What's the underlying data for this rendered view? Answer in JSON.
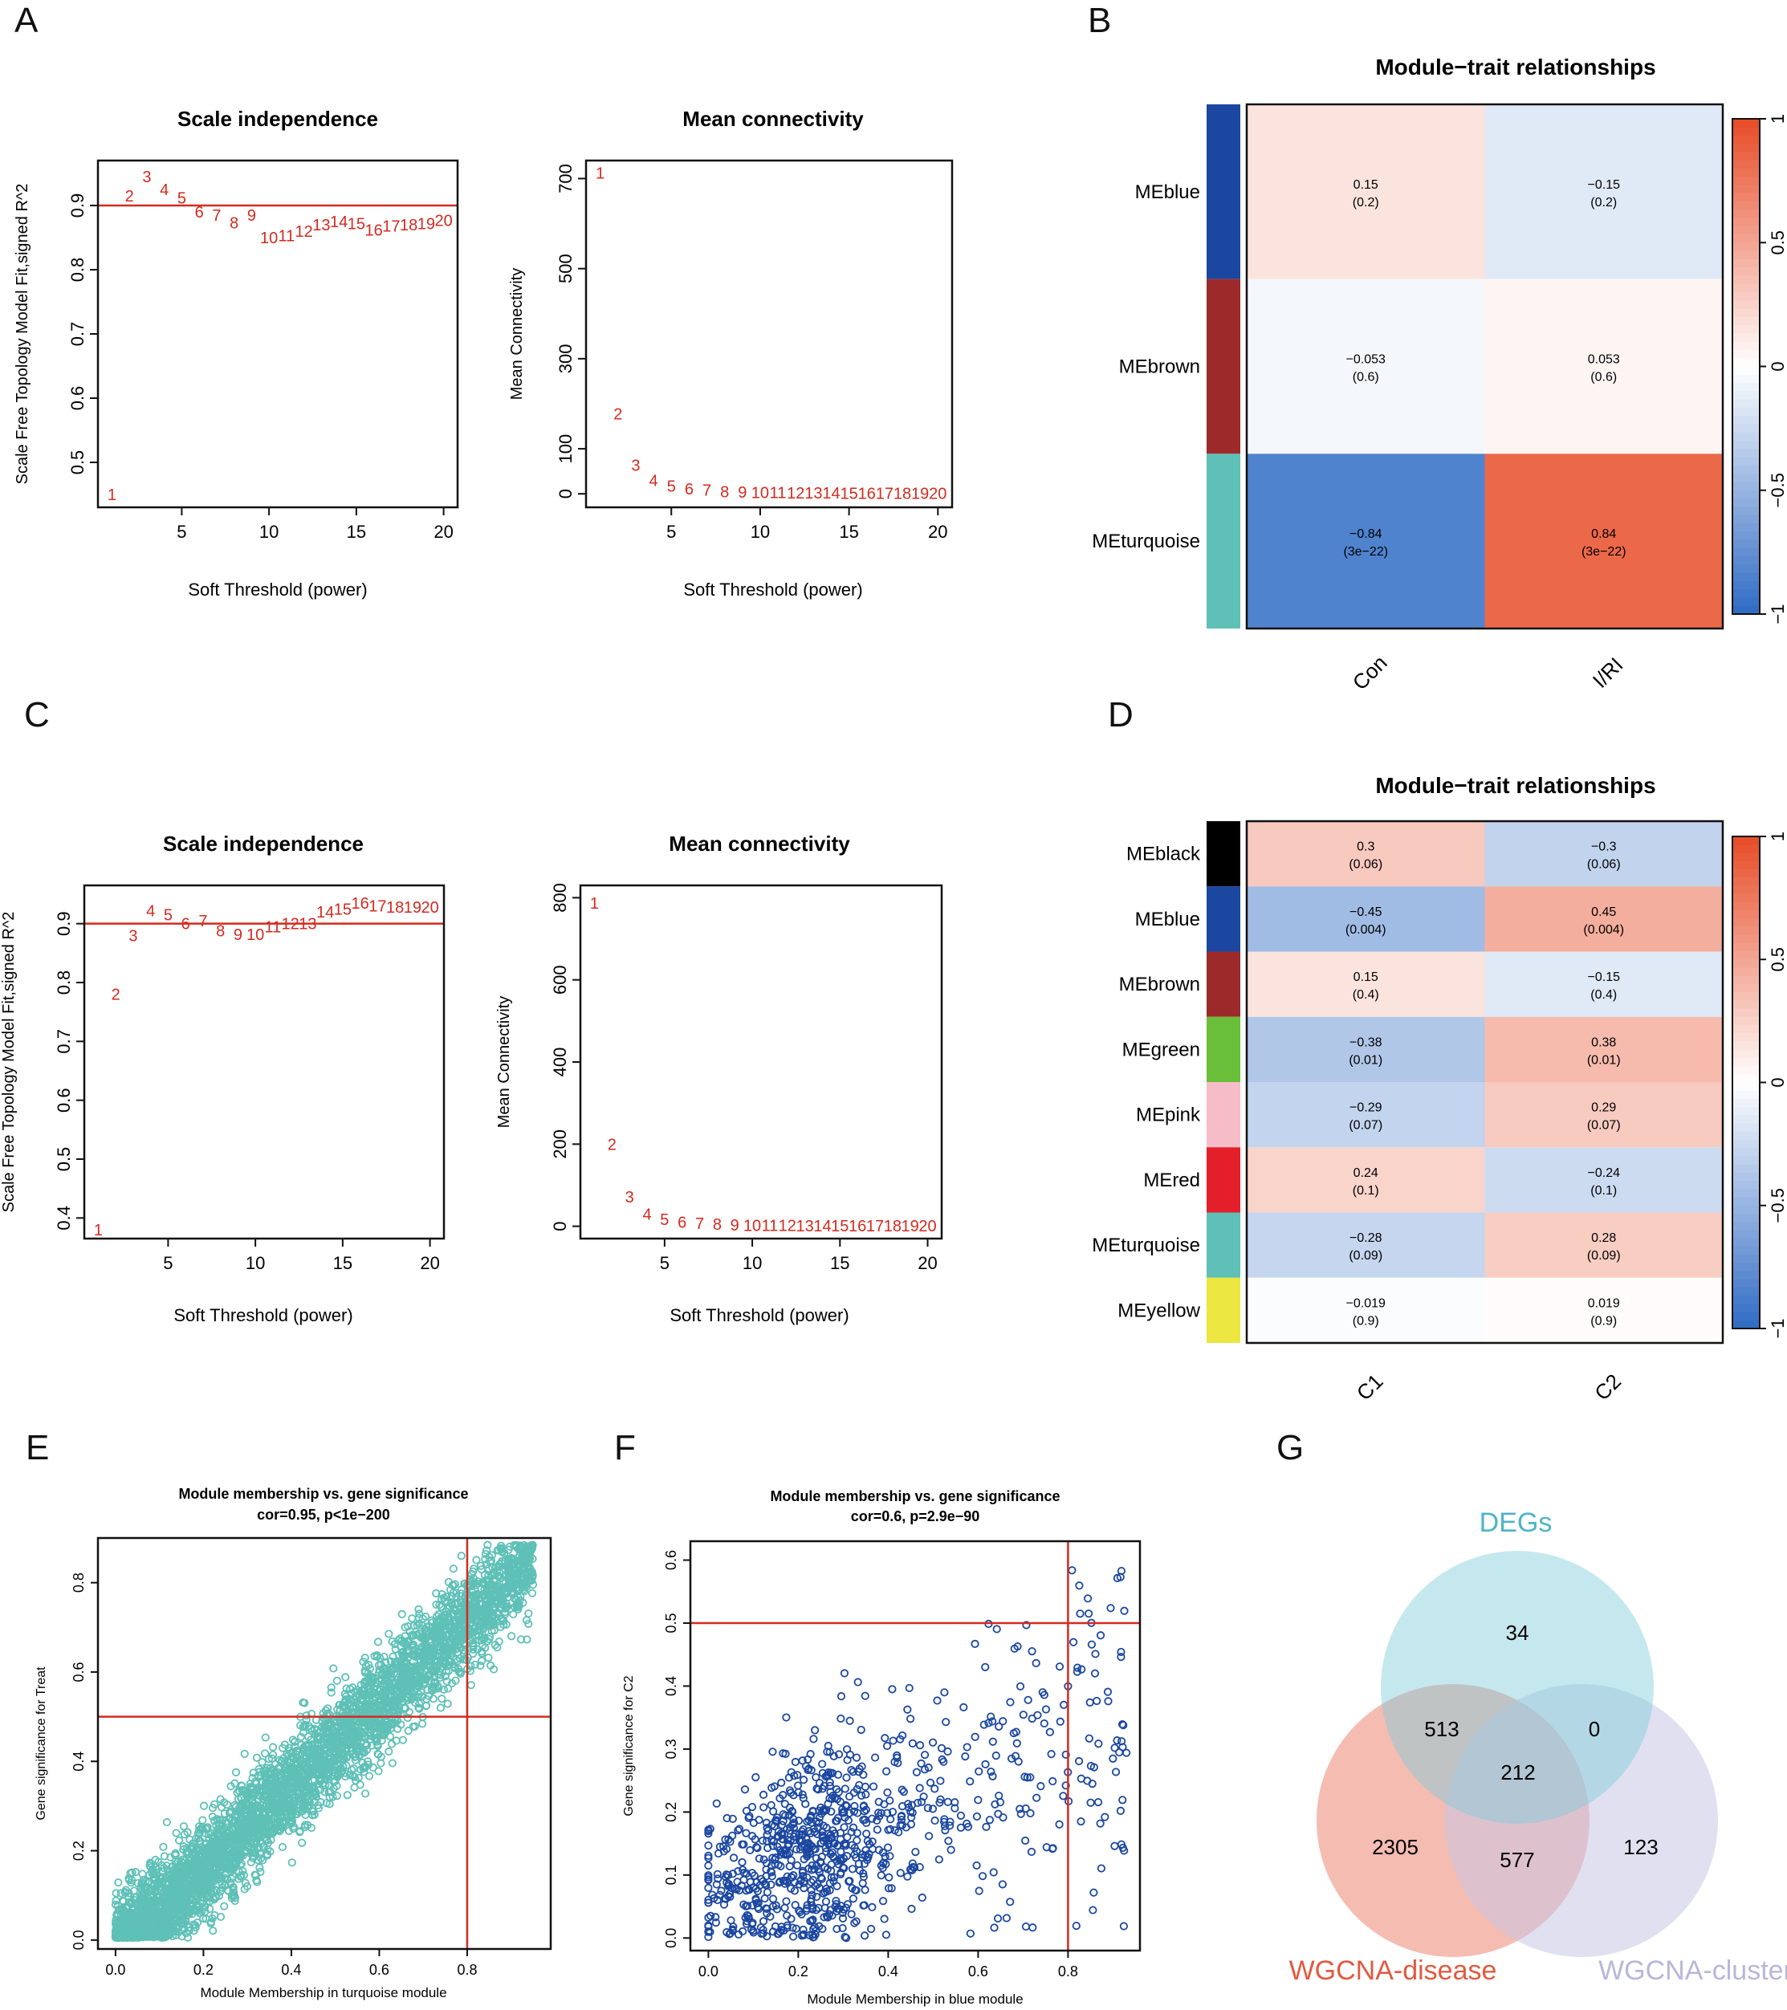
{
  "figure": {
    "panel_letters": [
      "A",
      "B",
      "C",
      "D",
      "E",
      "F",
      "G"
    ]
  },
  "chart_data": [
    {
      "panel": "A-left",
      "type": "scatter",
      "title": "Scale independence",
      "xlabel": "Soft Threshold (power)",
      "ylabel": "Scale Free Topology Model Fit,signed R^2",
      "xlim": [
        0.2,
        20.8
      ],
      "ylim": [
        0.43,
        0.97
      ],
      "xticks": [
        5,
        10,
        15,
        20
      ],
      "yticks": [
        0.5,
        0.6,
        0.7,
        0.8,
        0.9
      ],
      "threshold_line": 0.9,
      "point_labels": [
        "1",
        "2",
        "3",
        "4",
        "5",
        "6",
        "7",
        "8",
        "9",
        "10",
        "11",
        "12",
        "13",
        "14",
        "15",
        "16",
        "17",
        "18",
        "19",
        "20"
      ],
      "x": [
        1,
        2,
        3,
        4,
        5,
        6,
        7,
        8,
        9,
        10,
        11,
        12,
        13,
        14,
        15,
        16,
        17,
        18,
        19,
        20
      ],
      "values": [
        0.45,
        0.915,
        0.945,
        0.925,
        0.912,
        0.89,
        0.885,
        0.873,
        0.885,
        0.85,
        0.853,
        0.86,
        0.87,
        0.875,
        0.872,
        0.862,
        0.868,
        0.87,
        0.872,
        0.877
      ]
    },
    {
      "panel": "A-right",
      "type": "scatter",
      "title": "Mean connectivity",
      "xlabel": "Soft Threshold (power)",
      "ylabel": "Mean Connectivity",
      "xlim": [
        0.2,
        20.8
      ],
      "ylim": [
        -30,
        740
      ],
      "xticks": [
        5,
        10,
        15,
        20
      ],
      "yticks": [
        0,
        100,
        300,
        500,
        700
      ],
      "point_labels": [
        "1",
        "2",
        "3",
        "4",
        "5",
        "6",
        "7",
        "8",
        "9",
        "10",
        "11",
        "12",
        "13",
        "14",
        "15",
        "16",
        "17",
        "18",
        "19",
        "20"
      ],
      "x": [
        1,
        2,
        3,
        4,
        5,
        6,
        7,
        8,
        9,
        10,
        11,
        12,
        13,
        14,
        15,
        16,
        17,
        18,
        19,
        20
      ],
      "values": [
        712,
        178,
        64,
        30,
        17,
        11,
        8,
        5,
        4,
        3,
        3,
        2,
        2,
        2,
        1,
        1,
        1,
        1,
        1,
        1
      ]
    },
    {
      "panel": "B",
      "type": "heatmap",
      "title": "Module−trait relationships",
      "rows": [
        "MEblue",
        "MEbrown",
        "MEturquoise"
      ],
      "row_colors": [
        "#1b47a0",
        "#9c2a2a",
        "#5ec0b7"
      ],
      "columns": [
        "Con",
        "I/RI"
      ],
      "values": [
        [
          0.15,
          -0.15
        ],
        [
          -0.053,
          0.053
        ],
        [
          -0.84,
          0.84
        ]
      ],
      "cell_text": [
        [
          "0.15",
          "−0.15"
        ],
        [
          "−0.053",
          "0.053"
        ],
        [
          "−0.84",
          "0.84"
        ]
      ],
      "pvalues": [
        [
          "(0.2)",
          "(0.2)"
        ],
        [
          "(0.6)",
          "(0.6)"
        ],
        [
          "(3e−22)",
          "(3e−22)"
        ]
      ],
      "colorbar_ticks": [
        "1",
        "0.5",
        "0",
        "−0.5",
        "−1"
      ],
      "colorbar_tick_values": [
        1,
        0.5,
        0,
        -0.5,
        -1
      ]
    },
    {
      "panel": "C-left",
      "type": "scatter",
      "title": "Scale independence",
      "xlabel": "Soft Threshold (power)",
      "ylabel": "Scale Free Topology Model Fit,signed R^2",
      "xlim": [
        0.2,
        20.8
      ],
      "ylim": [
        0.365,
        0.965
      ],
      "xticks": [
        5,
        10,
        15,
        20
      ],
      "yticks": [
        0.4,
        0.5,
        0.6,
        0.7,
        0.8,
        0.9
      ],
      "threshold_line": 0.9,
      "point_labels": [
        "1",
        "2",
        "3",
        "4",
        "5",
        "6",
        "7",
        "8",
        "9",
        "10",
        "11",
        "12",
        "13",
        "14",
        "15",
        "16",
        "17",
        "18",
        "19",
        "20"
      ],
      "x": [
        1,
        2,
        3,
        4,
        5,
        6,
        7,
        8,
        9,
        10,
        11,
        12,
        13,
        14,
        15,
        16,
        17,
        18,
        19,
        20
      ],
      "values": [
        0.38,
        0.78,
        0.88,
        0.922,
        0.915,
        0.9,
        0.905,
        0.888,
        0.882,
        0.882,
        0.895,
        0.9,
        0.9,
        0.92,
        0.925,
        0.935,
        0.93,
        0.928,
        0.928,
        0.928
      ]
    },
    {
      "panel": "C-right",
      "type": "scatter",
      "title": "Mean connectivity",
      "xlabel": "Soft Threshold (power)",
      "ylabel": "Mean Connectivity",
      "xlim": [
        0.2,
        20.8
      ],
      "ylim": [
        -30,
        830
      ],
      "xticks": [
        5,
        10,
        15,
        20
      ],
      "yticks": [
        0,
        200,
        400,
        600,
        800
      ],
      "point_labels": [
        "1",
        "2",
        "3",
        "4",
        "5",
        "6",
        "7",
        "8",
        "9",
        "10",
        "11",
        "12",
        "13",
        "14",
        "15",
        "16",
        "17",
        "18",
        "19",
        "20"
      ],
      "x": [
        1,
        2,
        3,
        4,
        5,
        6,
        7,
        8,
        9,
        10,
        11,
        12,
        13,
        14,
        15,
        16,
        17,
        18,
        19,
        20
      ],
      "values": [
        787,
        200,
        72,
        30,
        17,
        10,
        7,
        5,
        3,
        2,
        2,
        2,
        1,
        1,
        1,
        1,
        1,
        1,
        1,
        1
      ]
    },
    {
      "panel": "D",
      "type": "heatmap",
      "title": "Module−trait relationships",
      "rows": [
        "MEblack",
        "MEblue",
        "MEbrown",
        "MEgreen",
        "MEpink",
        "MEred",
        "MEturquoise",
        "MEyellow"
      ],
      "row_colors": [
        "#000000",
        "#1b47a0",
        "#9c2a2a",
        "#6abf3a",
        "#f6bcc8",
        "#e3202a",
        "#5ec0b7",
        "#ece640"
      ],
      "columns": [
        "C1",
        "C2"
      ],
      "values": [
        [
          0.3,
          -0.3
        ],
        [
          -0.45,
          0.45
        ],
        [
          0.15,
          -0.15
        ],
        [
          -0.38,
          0.38
        ],
        [
          -0.29,
          0.29
        ],
        [
          0.24,
          -0.24
        ],
        [
          -0.28,
          0.28
        ],
        [
          -0.019,
          0.019
        ]
      ],
      "cell_text": [
        [
          "0.3",
          "−0.3"
        ],
        [
          "−0.45",
          "0.45"
        ],
        [
          "0.15",
          "−0.15"
        ],
        [
          "−0.38",
          "0.38"
        ],
        [
          "−0.29",
          "0.29"
        ],
        [
          "0.24",
          "−0.24"
        ],
        [
          "−0.28",
          "0.28"
        ],
        [
          "−0.019",
          "0.019"
        ]
      ],
      "pvalues": [
        [
          "(0.06)",
          "(0.06)"
        ],
        [
          "(0.004)",
          "(0.004)"
        ],
        [
          "(0.4)",
          "(0.4)"
        ],
        [
          "(0.01)",
          "(0.01)"
        ],
        [
          "(0.07)",
          "(0.07)"
        ],
        [
          "(0.1)",
          "(0.1)"
        ],
        [
          "(0.09)",
          "(0.09)"
        ],
        [
          "(0.9)",
          "(0.9)"
        ]
      ],
      "colorbar_ticks": [
        "1",
        "0.5",
        "0",
        "−0.5",
        "−1"
      ],
      "colorbar_tick_values": [
        1,
        0.5,
        0,
        -0.5,
        -1
      ]
    },
    {
      "panel": "E",
      "type": "scatter",
      "title": "Module membership vs. gene significance",
      "subtitle": "cor=0.95, p<1e−200",
      "xlabel": "Module Membership in turquoise module",
      "ylabel": "Gene significance for  Treat",
      "xlim": [
        -0.04,
        0.99
      ],
      "ylim": [
        -0.02,
        0.9
      ],
      "xticks": [
        0.0,
        0.2,
        0.4,
        0.6,
        0.8
      ],
      "xtick_labels": [
        "0.0",
        "0.2",
        "0.4",
        "0.6",
        "0.8"
      ],
      "yticks": [
        0.0,
        0.2,
        0.4,
        0.6,
        0.8
      ],
      "ytick_labels": [
        "0.0",
        "0.2",
        "0.4",
        "0.6",
        "0.8"
      ],
      "vline": 0.8,
      "hline": 0.5,
      "point_color": "#5ec0b7",
      "n_points": 4200,
      "relationship": "y ≈ 0.93·x − 0.03 (Gaussian scatter)"
    },
    {
      "panel": "F",
      "type": "scatter",
      "title": "Module membership vs. gene significance",
      "subtitle": "cor=0.6, p=2.9e−90",
      "xlabel": "Module Membership in blue module",
      "ylabel": "Gene significance for  C2",
      "xlim": [
        -0.04,
        0.96
      ],
      "ylim": [
        -0.02,
        0.63
      ],
      "xticks": [
        0.0,
        0.2,
        0.4,
        0.6,
        0.8
      ],
      "xtick_labels": [
        "0.0",
        "0.2",
        "0.4",
        "0.6",
        "0.8"
      ],
      "yticks": [
        0.0,
        0.1,
        0.2,
        0.3,
        0.4,
        0.5,
        0.6
      ],
      "ytick_labels": [
        "0.0",
        "0.1",
        "0.2",
        "0.3",
        "0.4",
        "0.5",
        "0.6"
      ],
      "vline": 0.8,
      "hline": 0.5,
      "point_color": "#1b47a0",
      "n_points": 900,
      "relationship": "y ≈ 0.3·x + 0.07 (heteroscedastic scatter)"
    },
    {
      "panel": "G",
      "type": "venn",
      "sets": [
        {
          "name": "DEGs",
          "color": "#4fb3c8",
          "fill": "#5ec0d3"
        },
        {
          "name": "WGCNA-disease",
          "color": "#e05a40",
          "fill": "#ec8572"
        },
        {
          "name": "WGCNA-cluster",
          "color": "#b9b6dc",
          "fill": "#c9c6e6"
        }
      ],
      "regions": {
        "DEGs_only": 34,
        "DEGs_and_disease_only": 513,
        "DEGs_and_cluster_only": 0,
        "all_three": 212,
        "disease_only": 2305,
        "disease_and_cluster_only": 577,
        "cluster_only": 123
      }
    }
  ]
}
